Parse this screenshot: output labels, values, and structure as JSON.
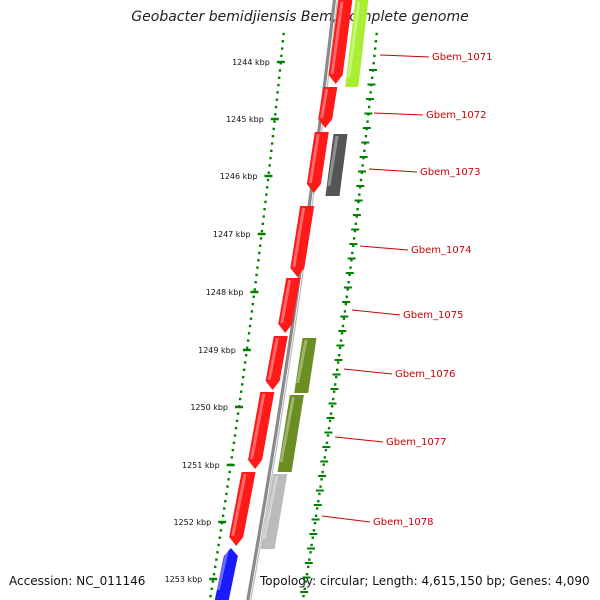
{
  "title": "Geobacter bemidjiensis Bem, complete genome",
  "accession_text": "Accession: NC_011146",
  "topology_text": "Topology: circular; Length: 4,615,150 bp; Genes: 4,090",
  "colors": {
    "backbone": "#8a8a8a",
    "tick": "#008000",
    "label": "#cc0000",
    "cds_forward": "#ff1a1a",
    "blue_feature": "#1a1aff",
    "yellow_green": "#aaee33",
    "olive": "#6b8e23",
    "dark_gray": "#555555",
    "light_gray": "#bbbbbb"
  },
  "kbp_ticks": [
    "1244 kbp",
    "1245 kbp",
    "1246 kbp",
    "1247 kbp",
    "1248 kbp",
    "1249 kbp",
    "1250 kbp",
    "1251 kbp",
    "1252 kbp",
    "1253 kbp"
  ],
  "gene_labels": [
    "Gbem_1071",
    "Gbem_1072",
    "Gbem_1073",
    "Gbem_1074",
    "Gbem_1075",
    "Gbem_1076",
    "Gbem_1077",
    "Gbem_1078"
  ]
}
